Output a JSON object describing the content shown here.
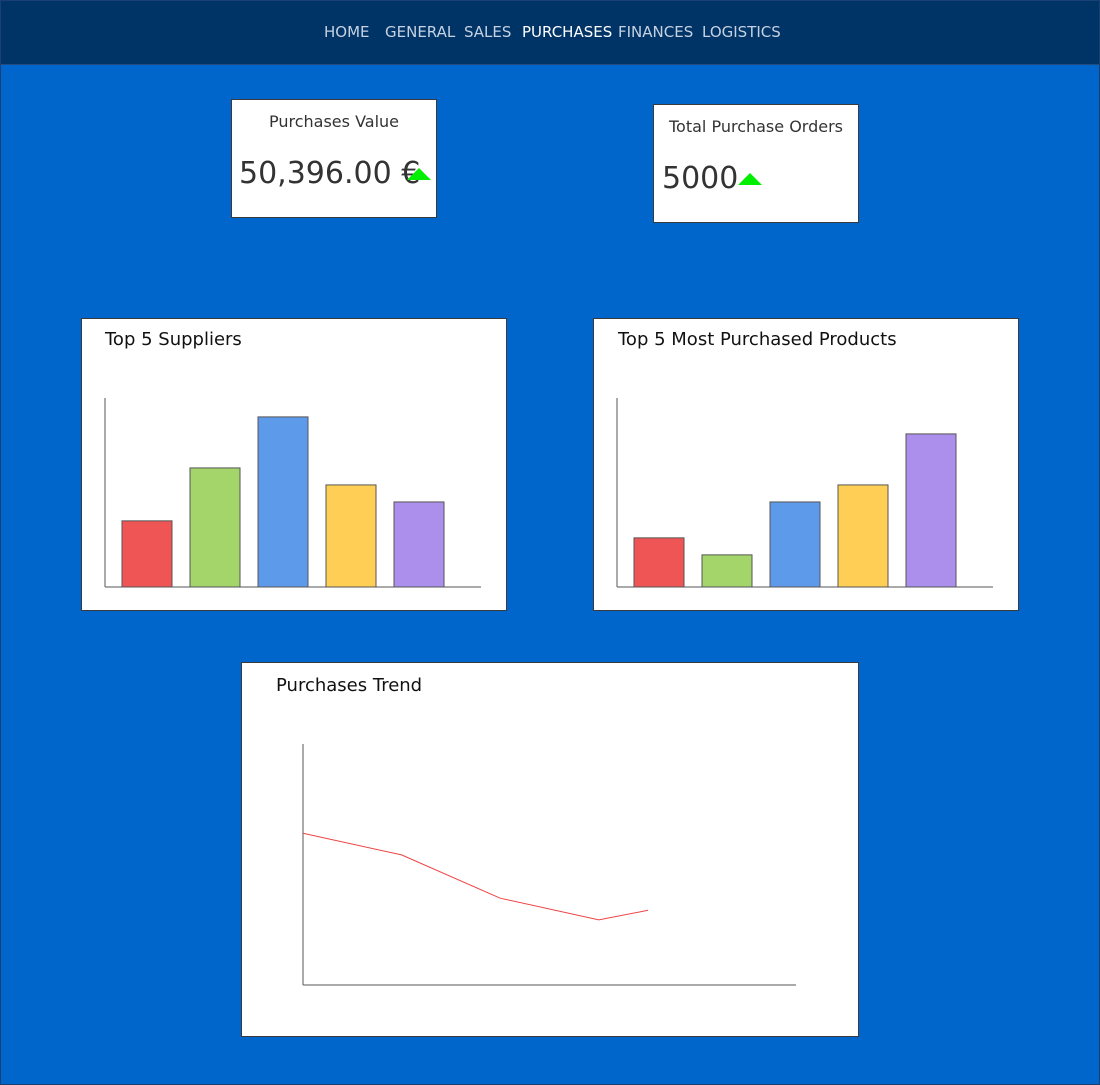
{
  "nav": {
    "items": [
      {
        "label": "HOME",
        "active": false
      },
      {
        "label": "GENERAL",
        "active": false
      },
      {
        "label": "SALES",
        "active": false
      },
      {
        "label": "PURCHASES",
        "active": true
      },
      {
        "label": "FINANCES",
        "active": false
      },
      {
        "label": "LOGISTICS",
        "active": false
      }
    ]
  },
  "kpis": {
    "purchases_value": {
      "title": "Purchases Value",
      "value": "50,396.00 €",
      "trend": "up"
    },
    "total_orders": {
      "title": "Total Purchase Orders",
      "value": "5000",
      "trend": "up"
    }
  },
  "colors": {
    "background": "#0066cc",
    "nav": "#003366",
    "trend_up": "#00ee00",
    "bar_palette": [
      "#ef5555",
      "#a3d56a",
      "#5e9aea",
      "#ffcf55",
      "#ac8fec"
    ],
    "trend_line": "#ee4444"
  },
  "chart_data": [
    {
      "id": "top-suppliers",
      "type": "bar",
      "title": "Top 5 Suppliers",
      "categories": [
        "",
        "",
        "",
        "",
        ""
      ],
      "values": [
        35,
        63,
        90,
        54,
        45
      ],
      "ylim": [
        0,
        100
      ],
      "grid": false
    },
    {
      "id": "top-products",
      "type": "bar",
      "title": "Top 5 Most Purchased Products",
      "categories": [
        "",
        "",
        "",
        "",
        ""
      ],
      "values": [
        26,
        17,
        45,
        54,
        81
      ],
      "ylim": [
        0,
        100
      ],
      "grid": false
    },
    {
      "id": "purchases-trend",
      "type": "line",
      "title": "Purchases Trend",
      "x": [
        0,
        2,
        4,
        6,
        7
      ],
      "series": [
        {
          "values": [
            63,
            54,
            36,
            27,
            31
          ]
        }
      ],
      "xlim": [
        0,
        10
      ],
      "ylim": [
        0,
        100
      ],
      "grid": false
    }
  ]
}
